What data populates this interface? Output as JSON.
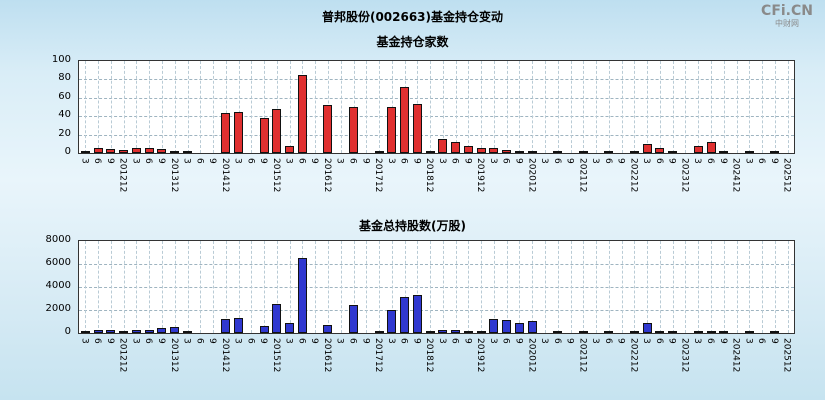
{
  "page": {
    "title": "普邦股份(002663)基金持仓变动",
    "logo_text": "CFi.CN",
    "logo_subtext": "中财网"
  },
  "chart_data": [
    {
      "type": "bar",
      "title": "基金持仓家数",
      "bar_color": "#e03030",
      "ylim": [
        0,
        100
      ],
      "yticks": [
        0,
        20,
        40,
        60,
        80,
        100
      ],
      "grid": true,
      "legend": "none",
      "categories": [
        "3",
        "6",
        "9",
        "201212",
        "3",
        "6",
        "9",
        "201312",
        "3",
        "6",
        "9",
        "201412",
        "3",
        "6",
        "9",
        "201512",
        "3",
        "6",
        "9",
        "201612",
        "3",
        "6",
        "9",
        "201712",
        "3",
        "6",
        "9",
        "201812",
        "3",
        "6",
        "9",
        "201912",
        "3",
        "6",
        "9",
        "202012",
        "3",
        "6",
        "9",
        "202112",
        "3",
        "6",
        "9",
        "202212",
        "3",
        "6",
        "9",
        "202312",
        "3",
        "6",
        "9",
        "202412",
        "3",
        "6",
        "9",
        "202512"
      ],
      "values": [
        2,
        5,
        4,
        3,
        5,
        5,
        4,
        2,
        1,
        0,
        0,
        44,
        45,
        0,
        38,
        48,
        8,
        85,
        0,
        52,
        0,
        50,
        0,
        1,
        50,
        72,
        53,
        1,
        15,
        12,
        8,
        5,
        5,
        3,
        2,
        1,
        0,
        1,
        0,
        1,
        0,
        1,
        0,
        1,
        10,
        5,
        1,
        0,
        8,
        12,
        1,
        0,
        1,
        0,
        1,
        0
      ]
    },
    {
      "type": "bar",
      "title": "基金总持股数(万股)",
      "bar_color": "#3038d0",
      "ylim": [
        0,
        8000
      ],
      "yticks": [
        0,
        2000,
        4000,
        6000,
        8000
      ],
      "grid": true,
      "legend": "none",
      "categories": [
        "3",
        "6",
        "9",
        "201212",
        "3",
        "6",
        "9",
        "201312",
        "3",
        "6",
        "9",
        "201412",
        "3",
        "6",
        "9",
        "201512",
        "3",
        "6",
        "9",
        "201612",
        "3",
        "6",
        "9",
        "201712",
        "3",
        "6",
        "9",
        "201812",
        "3",
        "6",
        "9",
        "201912",
        "3",
        "6",
        "9",
        "202012",
        "3",
        "6",
        "9",
        "202112",
        "3",
        "6",
        "9",
        "202212",
        "3",
        "6",
        "9",
        "202312",
        "3",
        "6",
        "9",
        "202412",
        "3",
        "6",
        "9",
        "202512"
      ],
      "values": [
        100,
        300,
        250,
        200,
        300,
        250,
        400,
        500,
        150,
        0,
        0,
        1200,
        1300,
        0,
        600,
        2500,
        900,
        6500,
        0,
        700,
        0,
        2400,
        0,
        50,
        2000,
        3100,
        3300,
        50,
        300,
        250,
        150,
        100,
        1200,
        1100,
        900,
        1000,
        0,
        100,
        0,
        100,
        0,
        50,
        0,
        50,
        900,
        100,
        50,
        0,
        100,
        150,
        50,
        0,
        50,
        0,
        50,
        0
      ]
    }
  ]
}
